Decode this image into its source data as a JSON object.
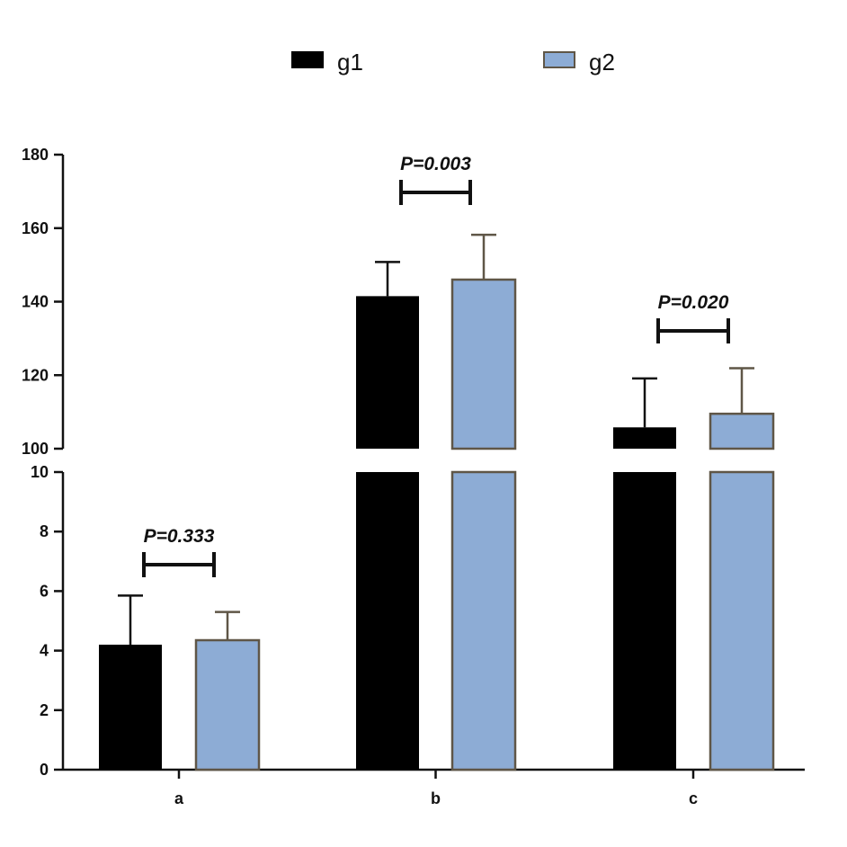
{
  "chart_data": {
    "type": "bar",
    "categories": [
      "a",
      "b",
      "c"
    ],
    "series": [
      {
        "name": "g1",
        "values": [
          4.2,
          141.5,
          105.8
        ],
        "errors": [
          1.65,
          9.3,
          13.3
        ],
        "color": "#000000"
      },
      {
        "name": "g2",
        "values": [
          4.35,
          146.0,
          109.5
        ],
        "errors": [
          0.95,
          12.2,
          12.4
        ],
        "color": "#8dacd5",
        "stroke": "#5f5647"
      }
    ],
    "pvalues": [
      "P=0.333",
      "P=0.003",
      "P=0.020"
    ],
    "y_axis": {
      "broken": true,
      "lower_segment": {
        "range": [
          0,
          10
        ],
        "ticks": [
          "0",
          "2",
          "4",
          "6",
          "8",
          "10"
        ]
      },
      "upper_segment": {
        "range": [
          100,
          180
        ],
        "ticks": [
          "100",
          "120",
          "140",
          "160",
          "180"
        ]
      }
    },
    "title": "",
    "xlabel": "",
    "ylabel": "",
    "legend_position": "top-center",
    "grid": false
  }
}
